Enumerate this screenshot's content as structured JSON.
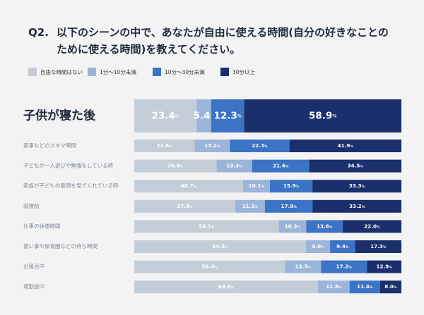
{
  "title": {
    "number": "Q2.",
    "line1": "以下のシーンの中で、あなたが自由に使える時間(自分の好きなことの",
    "line2": "ために使える時間)を教えてください。"
  },
  "chart_data": {
    "type": "bar",
    "orientation": "horizontal",
    "stacked": true,
    "normalized": true,
    "unit": "%",
    "xlim": [
      0,
      100
    ],
    "grid": false,
    "legend_position": "top-left",
    "categories": [
      "子供が寝た後",
      "家事などのスキマ時間",
      "子どもが一人遊びや勉強をしている時",
      "家族が子どもの面倒を見てくれている時",
      "就寝前",
      "仕事の休憩時間",
      "習い事や保育園などの待ち時間",
      "お風呂中",
      "通勤途中"
    ],
    "highlighted_category": "子供が寝た後",
    "series": [
      {
        "name": "自由な時間はない",
        "color": "#c3cdd7",
        "values": [
          23.4,
          22.6,
          30.8,
          40.7,
          37.8,
          54.1,
          64.3,
          56.4,
          68.8
        ]
      },
      {
        "name": "1分～10分未満",
        "color": "#9bb4d9",
        "values": [
          5.4,
          13.2,
          13.3,
          10.1,
          11.1,
          10.3,
          9.0,
          13.5,
          11.8
        ]
      },
      {
        "name": "10分～30分未満",
        "color": "#3b73c5",
        "values": [
          12.3,
          22.3,
          21.4,
          15.9,
          17.9,
          13.6,
          9.4,
          17.2,
          11.4
        ]
      },
      {
        "name": "30分以上",
        "color": "#1a2f6b",
        "values": [
          58.9,
          41.9,
          34.5,
          33.3,
          33.2,
          22.0,
          17.3,
          12.9,
          8.0
        ]
      }
    ]
  }
}
